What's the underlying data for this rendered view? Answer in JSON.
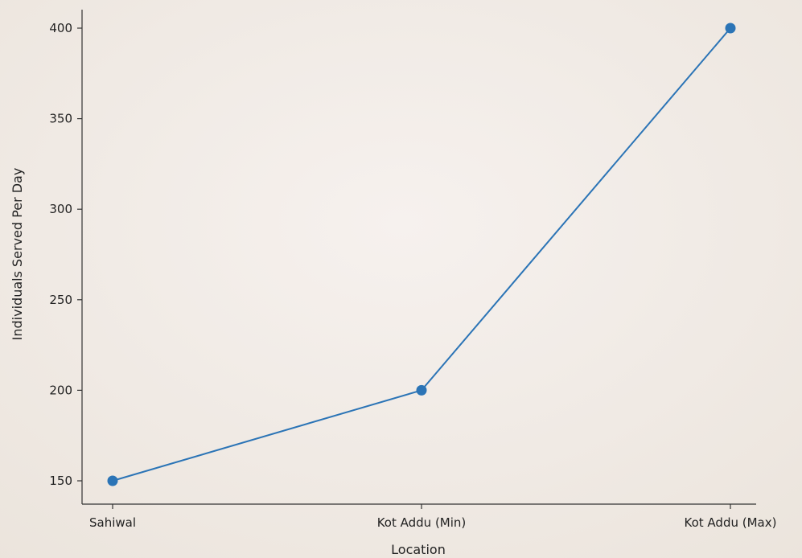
{
  "chart_data": {
    "type": "line",
    "title": "",
    "xlabel": "Location",
    "ylabel": "Individuals Served Per Day",
    "categories": [
      "Sahiwal",
      "Kot Addu (Min)",
      "Kot Addu (Max)"
    ],
    "series": [
      {
        "values": [
          150,
          200,
          400
        ],
        "color": "#2b74b6"
      }
    ],
    "ylim": [
      140,
      410
    ],
    "yticks": [
      150,
      200,
      250,
      300,
      350,
      400
    ],
    "grid": false,
    "legend": "none",
    "background": "#f3eeea"
  }
}
